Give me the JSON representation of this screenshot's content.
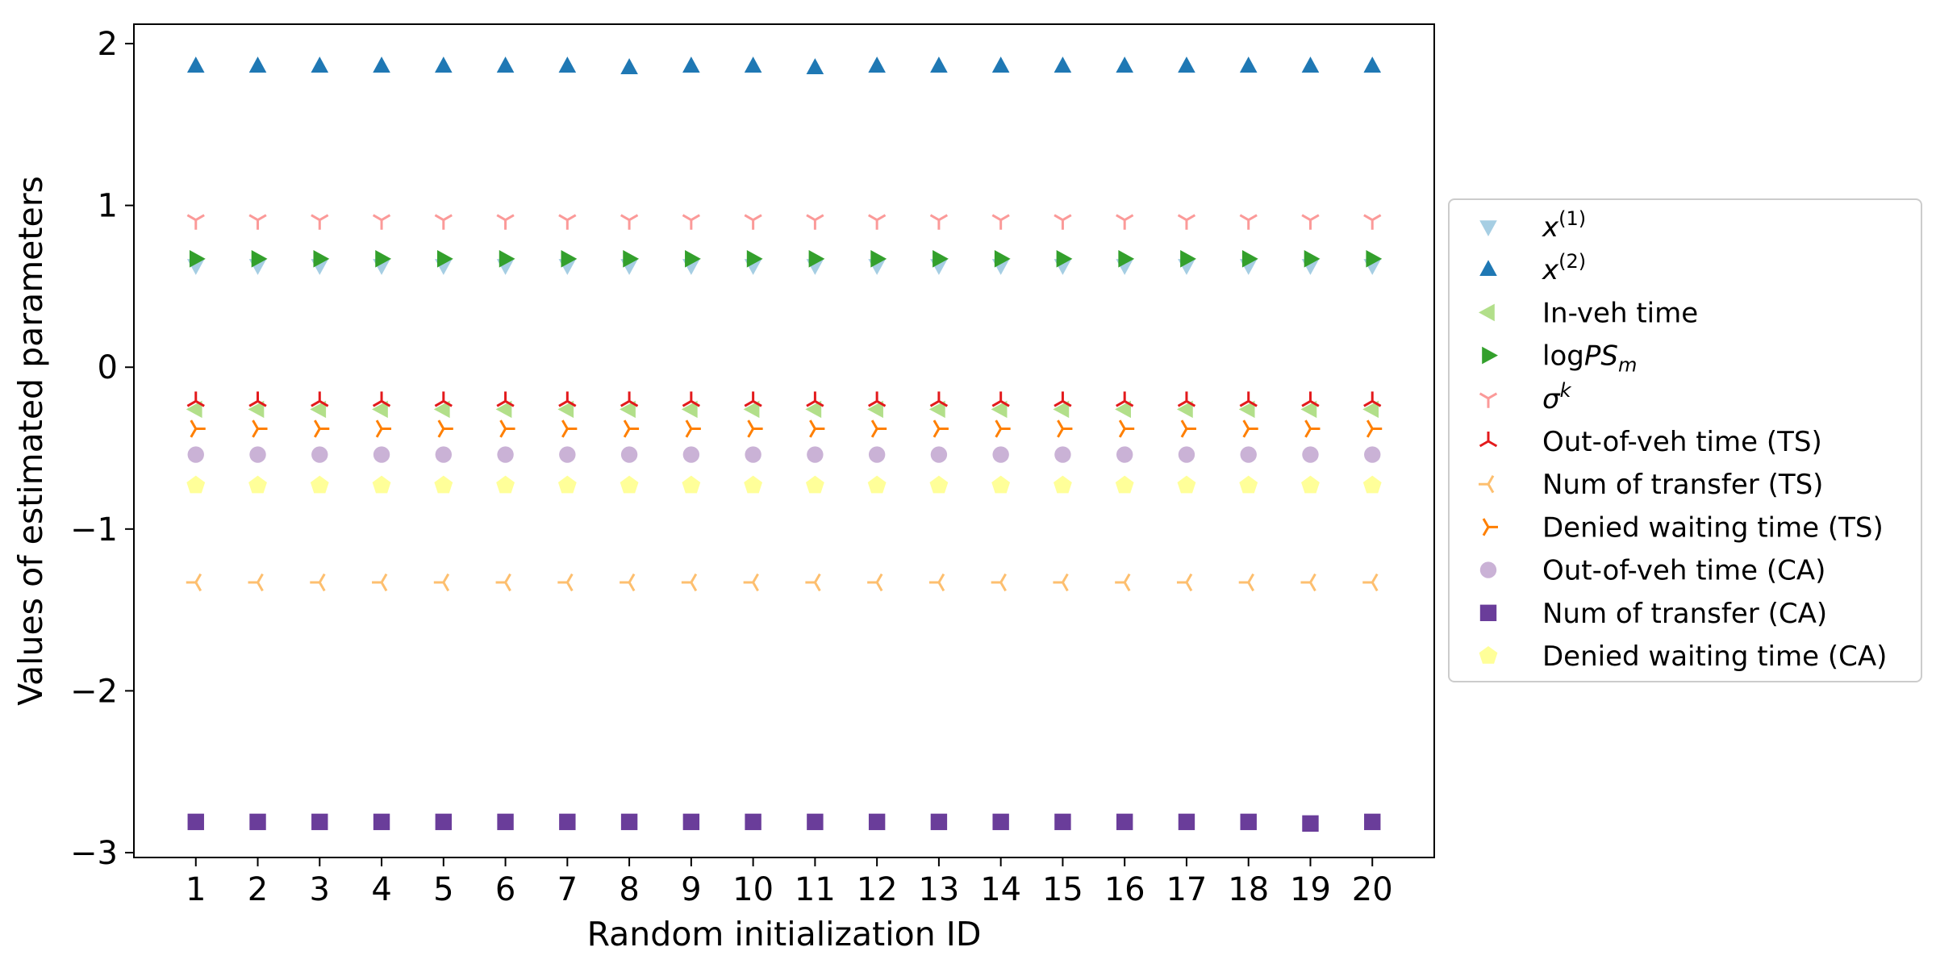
{
  "chart_data": {
    "type": "scatter",
    "title": "",
    "xlabel": "Random initialization ID",
    "ylabel": "Values of estimated parameters",
    "x": [
      1,
      2,
      3,
      4,
      5,
      6,
      7,
      8,
      9,
      10,
      11,
      12,
      13,
      14,
      15,
      16,
      17,
      18,
      19,
      20
    ],
    "xticks": [
      "1",
      "2",
      "3",
      "4",
      "5",
      "6",
      "7",
      "8",
      "9",
      "10",
      "11",
      "12",
      "13",
      "14",
      "15",
      "16",
      "17",
      "18",
      "19",
      "20"
    ],
    "yticks": [
      "2",
      "1",
      "0",
      "−1",
      "−2",
      "−3"
    ],
    "ytick_values": [
      2,
      1,
      0,
      -1,
      -2,
      -3
    ],
    "xlim": [
      0.0,
      21.0
    ],
    "ylim": [
      -3.03,
      2.12
    ],
    "grid": false,
    "legend_position": "right",
    "series": [
      {
        "name_main": "x",
        "name_sup": "(1)",
        "name_sub": "",
        "marker": "triangle-down",
        "color": "#a6cee3",
        "values": [
          0.63,
          0.63,
          0.63,
          0.63,
          0.63,
          0.63,
          0.63,
          0.63,
          0.63,
          0.63,
          0.63,
          0.63,
          0.63,
          0.63,
          0.63,
          0.63,
          0.63,
          0.63,
          0.63,
          0.63
        ]
      },
      {
        "name_main": "x",
        "name_sup": "(2)",
        "name_sub": "",
        "marker": "triangle-up",
        "color": "#1f78b4",
        "values": [
          1.86,
          1.86,
          1.86,
          1.86,
          1.86,
          1.86,
          1.86,
          1.85,
          1.86,
          1.86,
          1.85,
          1.86,
          1.86,
          1.86,
          1.86,
          1.86,
          1.86,
          1.86,
          1.86,
          1.86
        ]
      },
      {
        "name_main": "In-veh time",
        "name_sup": "",
        "name_sub": "",
        "marker": "triangle-left",
        "color": "#b2df8a",
        "values": [
          -0.26,
          -0.26,
          -0.26,
          -0.26,
          -0.26,
          -0.26,
          -0.26,
          -0.26,
          -0.26,
          -0.26,
          -0.26,
          -0.26,
          -0.26,
          -0.26,
          -0.26,
          -0.26,
          -0.26,
          -0.26,
          -0.26,
          -0.26
        ]
      },
      {
        "name_main": "log",
        "name_italic": "PS",
        "name_sup": "",
        "name_sub": "m",
        "marker": "triangle-right",
        "color": "#33a02c",
        "values": [
          0.67,
          0.67,
          0.67,
          0.67,
          0.67,
          0.67,
          0.67,
          0.67,
          0.67,
          0.67,
          0.67,
          0.67,
          0.67,
          0.67,
          0.67,
          0.67,
          0.67,
          0.67,
          0.67,
          0.67
        ]
      },
      {
        "name_main": "σ",
        "name_sup": "k",
        "name_sub": "",
        "marker": "tri-down",
        "color": "#fb9a99",
        "values": [
          0.91,
          0.91,
          0.91,
          0.91,
          0.91,
          0.91,
          0.91,
          0.91,
          0.91,
          0.91,
          0.91,
          0.91,
          0.91,
          0.91,
          0.91,
          0.91,
          0.91,
          0.91,
          0.91,
          0.91
        ]
      },
      {
        "name_main": "Out-of-veh time (TS)",
        "name_sup": "",
        "name_sub": "",
        "marker": "tri-up",
        "color": "#e31a1c",
        "values": [
          -0.21,
          -0.21,
          -0.21,
          -0.21,
          -0.21,
          -0.21,
          -0.21,
          -0.21,
          -0.21,
          -0.21,
          -0.21,
          -0.21,
          -0.21,
          -0.21,
          -0.21,
          -0.21,
          -0.21,
          -0.21,
          -0.21,
          -0.21
        ]
      },
      {
        "name_main": "Num of transfer (TS)",
        "name_sup": "",
        "name_sub": "",
        "marker": "tri-left",
        "color": "#fdbf6f",
        "values": [
          -1.33,
          -1.33,
          -1.33,
          -1.33,
          -1.33,
          -1.33,
          -1.33,
          -1.33,
          -1.33,
          -1.33,
          -1.33,
          -1.33,
          -1.33,
          -1.33,
          -1.33,
          -1.33,
          -1.33,
          -1.33,
          -1.33,
          -1.33
        ]
      },
      {
        "name_main": "Denied waiting time (TS)",
        "name_sup": "",
        "name_sub": "",
        "marker": "tri-right",
        "color": "#ff7f00",
        "values": [
          -0.38,
          -0.38,
          -0.38,
          -0.38,
          -0.38,
          -0.38,
          -0.38,
          -0.38,
          -0.38,
          -0.38,
          -0.38,
          -0.38,
          -0.38,
          -0.38,
          -0.38,
          -0.38,
          -0.38,
          -0.38,
          -0.38,
          -0.38
        ]
      },
      {
        "name_main": "Out-of-veh time (CA)",
        "name_sup": "",
        "name_sub": "",
        "marker": "circle",
        "color": "#cab2d6",
        "values": [
          -0.54,
          -0.54,
          -0.54,
          -0.54,
          -0.54,
          -0.54,
          -0.54,
          -0.54,
          -0.54,
          -0.54,
          -0.54,
          -0.54,
          -0.54,
          -0.54,
          -0.54,
          -0.54,
          -0.54,
          -0.54,
          -0.54,
          -0.54
        ]
      },
      {
        "name_main": "Num of transfer (CA)",
        "name_sup": "",
        "name_sub": "",
        "marker": "square",
        "color": "#6a3d9a",
        "values": [
          -2.81,
          -2.81,
          -2.81,
          -2.81,
          -2.81,
          -2.81,
          -2.81,
          -2.81,
          -2.81,
          -2.81,
          -2.81,
          -2.81,
          -2.81,
          -2.81,
          -2.81,
          -2.81,
          -2.81,
          -2.81,
          -2.82,
          -2.81
        ]
      },
      {
        "name_main": "Denied waiting time (CA)",
        "name_sup": "",
        "name_sub": "",
        "marker": "pentagon",
        "color": "#ffff99",
        "values": [
          -0.73,
          -0.73,
          -0.73,
          -0.73,
          -0.73,
          -0.73,
          -0.73,
          -0.73,
          -0.73,
          -0.73,
          -0.73,
          -0.73,
          -0.73,
          -0.73,
          -0.73,
          -0.73,
          -0.73,
          -0.73,
          -0.73,
          -0.73
        ]
      }
    ]
  }
}
